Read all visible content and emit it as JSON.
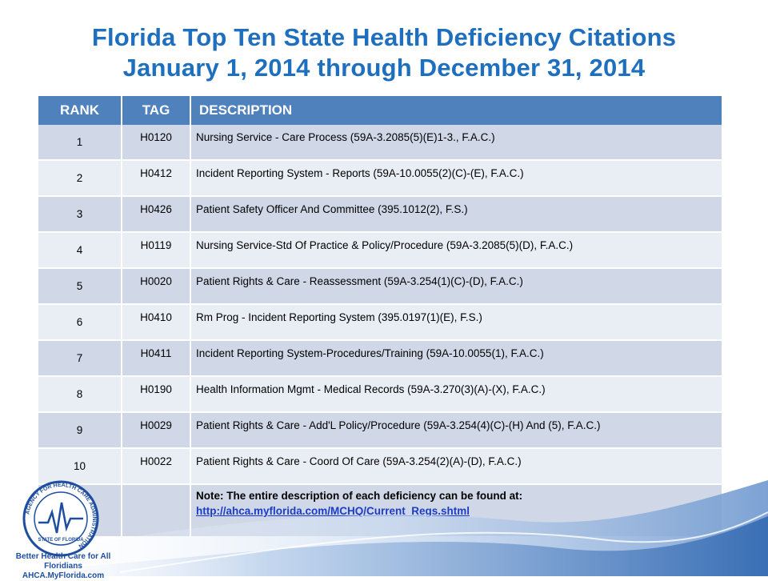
{
  "header": {
    "title_line1": "Florida Top Ten State Health Deficiency Citations",
    "title_line2": "January 1, 2014 through December 31, 2014"
  },
  "table": {
    "columns": [
      "RANK",
      "TAG",
      "DESCRIPTION"
    ],
    "rows": [
      {
        "rank": "1",
        "tag": "H0120",
        "description": "Nursing Service - Care Process (59A-3.2085(5)(E)1-3., F.A.C.)"
      },
      {
        "rank": "2",
        "tag": "H0412",
        "description": "Incident Reporting System - Reports (59A-10.0055(2)(C)-(E), F.A.C.)"
      },
      {
        "rank": "3",
        "tag": "H0426",
        "description": "Patient Safety Officer And Committee (395.1012(2), F.S.)"
      },
      {
        "rank": "4",
        "tag": "H0119",
        "description": "Nursing Service-Std Of Practice & Policy/Procedure (59A-3.2085(5)(D), F.A.C.)"
      },
      {
        "rank": "5",
        "tag": "H0020",
        "description": "Patient Rights & Care - Reassessment  (59A-3.254(1)(C)-(D), F.A.C.)"
      },
      {
        "rank": "6",
        "tag": "H0410",
        "description": "Rm Prog - Incident Reporting System (395.0197(1)(E), F.S.)"
      },
      {
        "rank": "7",
        "tag": "H0411",
        "description": "Incident Reporting System-Procedures/Training (59A-10.0055(1), F.A.C.)"
      },
      {
        "rank": "8",
        "tag": "H0190",
        "description": "Health Information Mgmt - Medical Records (59A-3.270(3)(A)-(X), F.A.C.)"
      },
      {
        "rank": "9",
        "tag": "H0029",
        "description": "Patient Rights & Care - Add'L Policy/Procedure (59A-3.254(4)(C)-(H) And (5), F.A.C.)"
      },
      {
        "rank": "10",
        "tag": "H0022",
        "description": "Patient Rights & Care - Coord Of Care (59A-3.254(2)(A)-(D), F.A.C.)"
      }
    ],
    "note": "Note:  The entire description of each deficiency can be found at:",
    "note_link": "http://ahca.myflorida.com/MCHQ/Current_Regs.shtml"
  },
  "footer": {
    "logo_ring_text": "AGENCY FOR HEALTH CARE ADMINISTRATION",
    "logo_state_text": "STATE OF FLORIDA",
    "tagline": "Better Health Care for All Floridians",
    "website": "AHCA.MyFlorida.com"
  },
  "colors": {
    "title": "#1f6fbf",
    "header_bg": "#4f81bd",
    "row_odd": "#d0d8e8",
    "row_even": "#e9edf4",
    "link": "#1a3cc8"
  },
  "icons": [
    "ahca-logo-icon"
  ]
}
